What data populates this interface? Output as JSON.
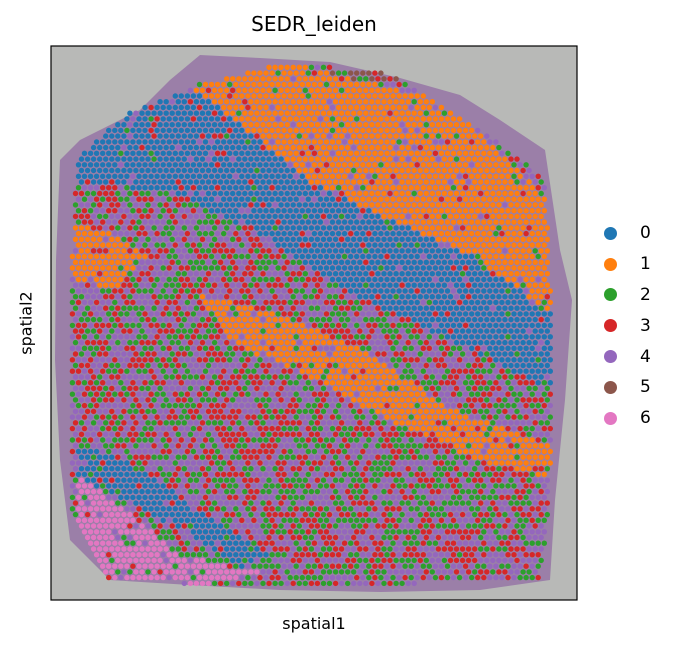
{
  "chart_data": {
    "type": "scatter",
    "title": "SEDR_leiden",
    "xlabel": "spatial1",
    "ylabel": "spatial2",
    "grid": false,
    "legend_position": "right",
    "background": "tissue-image",
    "xlim": [
      0,
      1
    ],
    "ylim": [
      0,
      1
    ],
    "categories": [
      "0",
      "1",
      "2",
      "3",
      "4",
      "5",
      "6"
    ],
    "colors": [
      "#1f77b4",
      "#ff7f0e",
      "#2ca02c",
      "#d62728",
      "#9467bd",
      "#8c564b",
      "#e377c2"
    ],
    "regions": [
      {
        "cluster": "0",
        "description": "wide diagonal band from upper-left to right edge",
        "polygon": [
          [
            0.04,
            0.86
          ],
          [
            0.1,
            0.92
          ],
          [
            0.28,
            0.92
          ],
          [
            0.5,
            0.75
          ],
          [
            0.8,
            0.62
          ],
          [
            0.95,
            0.52
          ],
          [
            0.95,
            0.38
          ],
          [
            0.8,
            0.45
          ],
          [
            0.58,
            0.55
          ],
          [
            0.4,
            0.66
          ],
          [
            0.22,
            0.74
          ],
          [
            0.04,
            0.75
          ]
        ]
      },
      {
        "cluster": "0",
        "description": "lower-left band",
        "polygon": [
          [
            0.05,
            0.28
          ],
          [
            0.15,
            0.25
          ],
          [
            0.3,
            0.15
          ],
          [
            0.42,
            0.08
          ],
          [
            0.36,
            0.06
          ],
          [
            0.22,
            0.14
          ],
          [
            0.1,
            0.2
          ],
          [
            0.05,
            0.22
          ]
        ]
      },
      {
        "cluster": "1",
        "description": "upper-right layer",
        "polygon": [
          [
            0.22,
            0.92
          ],
          [
            0.45,
            0.97
          ],
          [
            0.75,
            0.9
          ],
          [
            0.95,
            0.72
          ],
          [
            0.95,
            0.52
          ],
          [
            0.8,
            0.6
          ],
          [
            0.55,
            0.7
          ],
          [
            0.4,
            0.78
          ]
        ]
      },
      {
        "cluster": "1",
        "description": "middle layer",
        "polygon": [
          [
            0.28,
            0.55
          ],
          [
            0.42,
            0.52
          ],
          [
            0.6,
            0.45
          ],
          [
            0.75,
            0.35
          ],
          [
            0.95,
            0.28
          ],
          [
            0.95,
            0.22
          ],
          [
            0.82,
            0.25
          ],
          [
            0.65,
            0.32
          ],
          [
            0.5,
            0.4
          ],
          [
            0.35,
            0.46
          ]
        ]
      },
      {
        "cluster": "1",
        "description": "left patch",
        "polygon": [
          [
            0.04,
            0.68
          ],
          [
            0.12,
            0.66
          ],
          [
            0.18,
            0.62
          ],
          [
            0.12,
            0.56
          ],
          [
            0.04,
            0.58
          ]
        ]
      },
      {
        "cluster": "6",
        "description": "bottom-left patch",
        "polygon": [
          [
            0.05,
            0.23
          ],
          [
            0.12,
            0.18
          ],
          [
            0.25,
            0.08
          ],
          [
            0.4,
            0.05
          ],
          [
            0.3,
            0.03
          ],
          [
            0.15,
            0.03
          ],
          [
            0.05,
            0.06
          ]
        ]
      },
      {
        "cluster": "5",
        "description": "top edge scatter",
        "polygon": [
          [
            0.3,
            0.95
          ],
          [
            0.55,
            0.98
          ],
          [
            0.7,
            0.95
          ],
          [
            0.6,
            0.92
          ],
          [
            0.4,
            0.93
          ]
        ]
      }
    ]
  }
}
